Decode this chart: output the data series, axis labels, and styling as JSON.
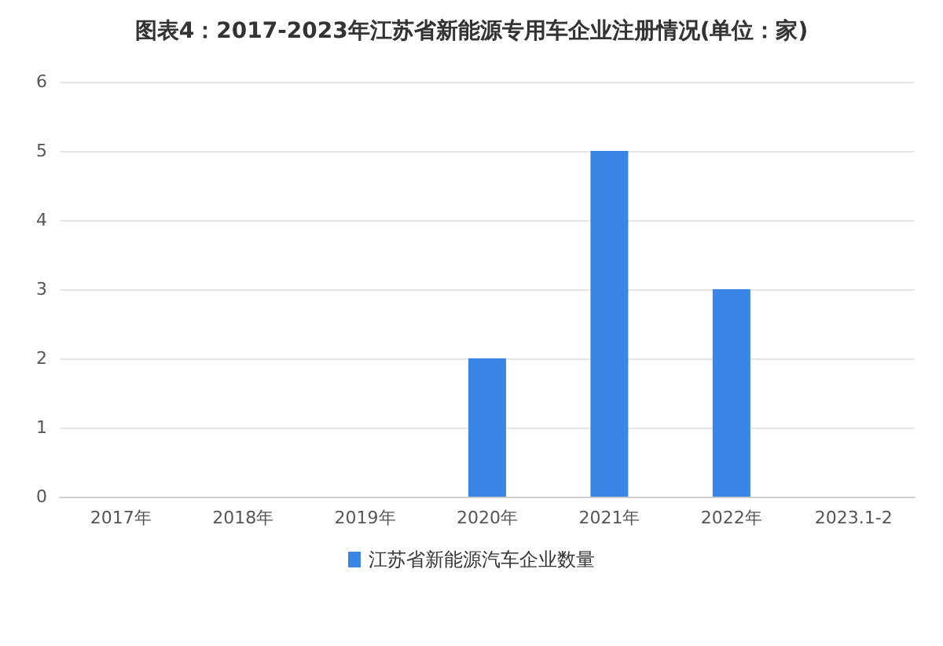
{
  "chart_data": {
    "type": "bar",
    "title": "图表4：2017-2023年江苏省新能源专用车企业注册情况(单位：家)",
    "categories": [
      "2017年",
      "2018年",
      "2019年",
      "2020年",
      "2021年",
      "2022年",
      "2023.1-2"
    ],
    "series": [
      {
        "name": "江苏省新能源汽车企业数量",
        "color": "#3a86e6",
        "values": [
          0,
          0,
          0,
          2,
          5,
          3,
          0
        ]
      }
    ],
    "ylim": [
      0,
      6
    ],
    "yticks": [
      0,
      1,
      2,
      3,
      4,
      5,
      6
    ],
    "grid": "y",
    "legend": "bottom"
  }
}
